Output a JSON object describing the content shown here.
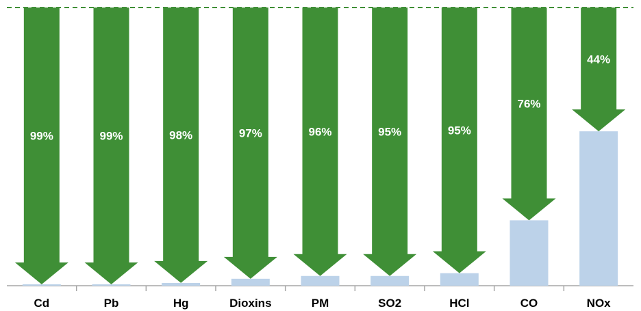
{
  "chart_data": {
    "type": "bar",
    "title": "",
    "xlabel": "",
    "ylabel": "",
    "categories": [
      "Cd",
      "Pb",
      "Hg",
      "Dioxins",
      "PM",
      "SO2",
      "HCl",
      "CO",
      "NOx"
    ],
    "reduction_labels": [
      "99%",
      "99%",
      "98%",
      "97%",
      "96%",
      "95%",
      "95%",
      "76%",
      "44%"
    ],
    "reduction_percent": [
      99,
      99,
      98,
      97,
      96,
      95,
      95,
      76,
      44
    ],
    "remaining_percent": [
      0.5,
      0.5,
      1,
      2.5,
      3.5,
      3.5,
      4.5,
      23.5,
      55.5
    ],
    "ylim": [
      0,
      100
    ],
    "baseline_reference": 100,
    "reference_line": "dashed",
    "grid": false,
    "legend": "none",
    "colors": {
      "reduction_arrow": "#3f8f36",
      "remaining_bar": "#bcd2e9",
      "reference_line": "#3f8f36",
      "label_text": "#ffffff",
      "axis": "#a6a6a6",
      "category_text": "#000000"
    }
  }
}
